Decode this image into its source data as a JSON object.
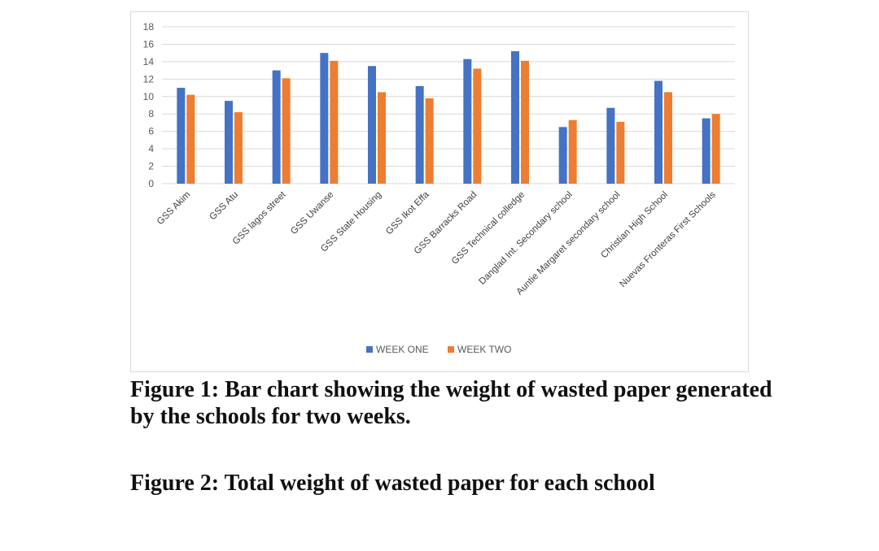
{
  "chart_data": {
    "type": "bar",
    "categories": [
      "GSS Akim",
      "GSS Atu",
      "GSS lagos street",
      "GSS Uwanse",
      "GSS State Housing",
      "GSS Ikot Effa",
      "GSS Barracks Road",
      "GSS Technical colledge",
      "Danglad Int. Secondary school",
      "Auntie Margaret secondary school",
      "Christian High School",
      "Nuevas Fronteras First Schools"
    ],
    "series": [
      {
        "name": "WEEK ONE",
        "color": "#4472C4",
        "values": [
          11.0,
          9.5,
          13.0,
          15.0,
          13.5,
          11.2,
          14.3,
          15.2,
          6.5,
          8.7,
          11.8,
          7.5
        ]
      },
      {
        "name": "WEEK TWO",
        "color": "#ED7D31",
        "values": [
          10.2,
          8.2,
          12.1,
          14.1,
          10.5,
          9.8,
          13.2,
          14.1,
          7.3,
          7.1,
          10.5,
          8.0
        ]
      }
    ],
    "ylim": [
      0,
      18
    ],
    "yticks": [
      0,
      2,
      4,
      6,
      8,
      10,
      12,
      14,
      16,
      18
    ],
    "grid": true,
    "legend_position": "bottom"
  },
  "captions": {
    "figure1": "Figure 1: Bar chart showing the weight of wasted paper generated by the schools for two weeks.",
    "figure2": "Figure 2: Total weight of wasted paper for each school"
  }
}
